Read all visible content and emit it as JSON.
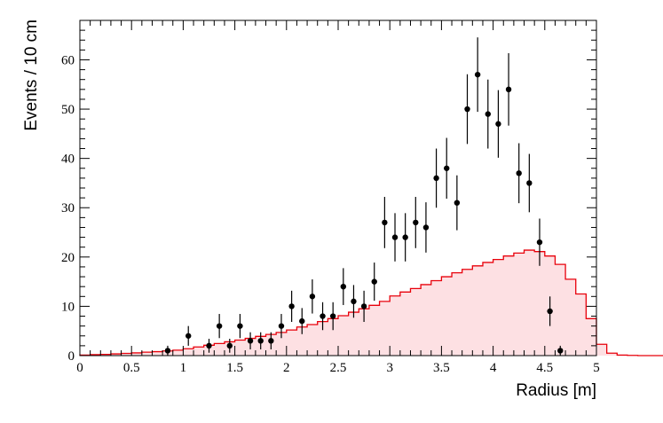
{
  "chart_data": {
    "type": "histogram-with-points",
    "title": "",
    "xlabel": "Radius [m]",
    "ylabel": "Events / 10 cm",
    "xlim": [
      0,
      5
    ],
    "ylim": [
      0,
      68
    ],
    "x_ticks": [
      "0",
      "0.5",
      "1",
      "1.5",
      "2",
      "2.5",
      "3",
      "3.5",
      "4",
      "4.5",
      "5"
    ],
    "y_ticks": [
      "0",
      "10",
      "20",
      "30",
      "40",
      "50",
      "60"
    ],
    "grid": false,
    "legend": "none",
    "colors": {
      "histogram_line": "#e8000b",
      "histogram_fill": "#fde0e3",
      "points": "#000000"
    },
    "series": [
      {
        "type": "step-histogram",
        "bin_width": 0.1,
        "x_start": 0,
        "values": [
          0.1,
          0.2,
          0.25,
          0.35,
          0.45,
          0.55,
          0.7,
          0.8,
          0.95,
          1.1,
          1.4,
          1.75,
          2.1,
          2.45,
          2.8,
          3.15,
          3.5,
          3.9,
          4.3,
          4.7,
          5.2,
          5.8,
          6.3,
          6.9,
          7.5,
          8.1,
          8.8,
          9.5,
          10.2,
          11.0,
          12.1,
          12.9,
          13.6,
          14.4,
          15.2,
          16.0,
          16.8,
          17.5,
          18.2,
          18.9,
          19.5,
          20.2,
          20.8,
          21.4,
          21.1,
          20.2,
          18.5,
          15.5,
          12.5,
          7.5,
          2.3,
          0.5,
          0.1,
          0.05,
          0.0,
          0.0,
          0.0,
          0.0,
          0.0,
          0.0,
          0.0,
          0.0,
          0.0,
          0.0,
          0.0,
          0.0,
          0.0,
          0.0,
          0.0,
          0.0,
          0.0,
          0.0,
          0.0,
          0.0,
          0.0,
          0.0,
          0.0,
          0.0,
          0.0,
          0.0
        ]
      },
      {
        "type": "points-with-errors",
        "x": [
          0.85,
          1.05,
          1.25,
          1.35,
          1.45,
          1.55,
          1.65,
          1.75,
          1.85,
          1.95,
          2.05,
          2.15,
          2.25,
          2.35,
          2.45,
          2.55,
          2.65,
          2.75,
          2.85,
          2.95,
          3.05,
          3.15,
          3.25,
          3.35,
          3.45,
          3.55,
          3.65,
          3.75,
          3.85,
          3.95,
          4.05,
          4.15,
          4.25,
          4.35,
          4.45,
          4.55,
          4.65
        ],
        "y": [
          1,
          4,
          2,
          6,
          2,
          6,
          3,
          3,
          3,
          6,
          10,
          7,
          12,
          8,
          8,
          14,
          11,
          10,
          15,
          27,
          24,
          24,
          27,
          26,
          36,
          38,
          31,
          50,
          57,
          49,
          47,
          54,
          37,
          35,
          23,
          9,
          1
        ]
      }
    ]
  }
}
